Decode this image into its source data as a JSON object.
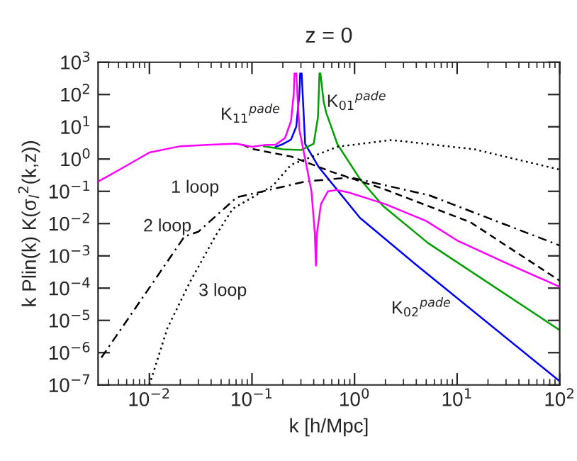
{
  "chart_data": {
    "type": "line",
    "title": "z = 0",
    "xlabel": "k [h/Mpc]",
    "ylabel": "k Plin(k) K(σ$_{l}$$^{2}$(k,z))",
    "log": "xy",
    "grid": false,
    "xlim": [
      0.00316,
      100
    ],
    "ylim": [
      1e-07,
      1000
    ],
    "xticks": [
      {
        "value": 0.01,
        "label": "10$^{−2}$"
      },
      {
        "value": 0.1,
        "label": "10$^{−1}$"
      },
      {
        "value": 1,
        "label": "10$^{0}$"
      },
      {
        "value": 10,
        "label": "10$^{1}$"
      },
      {
        "value": 100,
        "label": "10$^{2}$"
      }
    ],
    "yticks": [
      {
        "value": 1e-07,
        "label": "10$^{−7}$"
      },
      {
        "value": 1e-06,
        "label": "10$^{−6}$"
      },
      {
        "value": 1e-05,
        "label": "10$^{−5}$"
      },
      {
        "value": 0.0001,
        "label": "10$^{−4}$"
      },
      {
        "value": 0.001,
        "label": "10$^{−3}$"
      },
      {
        "value": 0.01,
        "label": "10$^{−2}$"
      },
      {
        "value": 0.1,
        "label": "10$^{−1}$"
      },
      {
        "value": 1,
        "label": "10$^{0}$"
      },
      {
        "value": 10,
        "label": "10$^{1}$"
      },
      {
        "value": 100,
        "label": "10$^{2}$"
      },
      {
        "value": 1000,
        "label": "10$^{3}$"
      }
    ],
    "series": [
      {
        "color": "#ff00ff",
        "line_style": "solid",
        "x": [
          0.00316,
          0.005,
          0.01,
          0.02,
          0.04,
          0.07,
          0.1,
          0.13,
          0.17,
          0.21,
          0.24,
          0.255,
          0.26,
          0.265,
          0.27,
          0.29,
          0.33,
          0.38,
          0.41,
          0.42,
          0.43,
          0.47,
          0.55,
          0.67,
          0.9,
          2,
          5,
          10,
          30,
          100
        ],
        "values": [
          0.2,
          0.45,
          1.6,
          2.5,
          2.8,
          3.0,
          2.4,
          2.7,
          2.8,
          4.5,
          15,
          100,
          450,
          null,
          450,
          8,
          1,
          0.1,
          0.005,
          0.0005,
          0.005,
          0.04,
          0.1,
          0.11,
          0.09,
          0.04,
          0.012,
          0.003,
          0.0006,
          0.00011
        ]
      },
      {
        "color": "#0000ff",
        "line_style": "solid",
        "x": [
          0.17,
          0.2,
          0.24,
          0.27,
          0.29,
          0.295,
          0.3,
          0.305,
          0.33,
          0.45,
          1.13,
          3.9,
          100
        ],
        "values": [
          2.4,
          2.9,
          4,
          10,
          100,
          450,
          null,
          450,
          2.9,
          0.55,
          0.015,
          0.00056,
          1.3e-07
        ]
      },
      {
        "color": "#00a000",
        "line_style": "solid",
        "x": [
          0.13,
          0.17,
          0.2,
          0.3,
          0.4,
          0.44,
          0.455,
          0.46,
          0.465,
          0.5,
          0.53,
          0.68,
          1.12,
          1.9,
          5.2,
          100
        ],
        "values": [
          2.5,
          2.2,
          2.0,
          1.9,
          3,
          20,
          450,
          null,
          450,
          60,
          27,
          2.9,
          0.25,
          0.035,
          0.0025,
          5e-06
        ]
      },
      {
        "color": "#000000",
        "line_style": "dashed",
        "x": [
          0.08,
          0.105,
          0.24,
          0.6,
          1.9,
          13.5,
          100
        ],
        "values": [
          2.8,
          2.0,
          1.2,
          0.4,
          0.12,
          0.011,
          0.00017
        ]
      },
      {
        "color": "#000000",
        "line_style": "dashdot",
        "x": [
          0.0034,
          0.011,
          0.022,
          0.03,
          0.071,
          0.33,
          0.91,
          5.3,
          100
        ],
        "values": [
          7e-07,
          0.00016,
          0.004,
          0.0056,
          0.065,
          0.2,
          0.27,
          0.076,
          0.0021
        ]
      },
      {
        "color": "#000000",
        "line_style": "dotted",
        "x": [
          0.01,
          0.015,
          0.025,
          0.044,
          0.065,
          0.16,
          0.24,
          0.68,
          2.3,
          14.8,
          100
        ],
        "values": [
          1e-07,
          5.8e-06,
          0.00016,
          0.0041,
          0.029,
          0.15,
          0.66,
          2.4,
          3.9,
          2.0,
          0.47
        ]
      }
    ],
    "annotations": [
      "1 loop",
      "2 loop",
      "3 loop",
      "K$_{11}$$^{pade}$",
      "K$_{01}$$^{pade}$",
      "K$_{02}$$^{pade}$"
    ]
  }
}
